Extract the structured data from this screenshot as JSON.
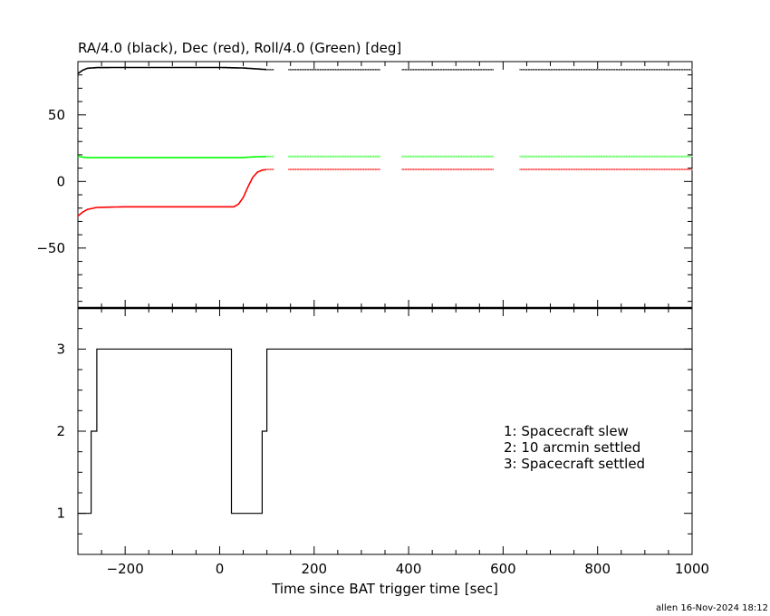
{
  "chart_data": [
    {
      "type": "line",
      "panel": "top",
      "title": "RA/4.0 (black), Dec (red), Roll/4.0 (Green) [deg]",
      "xlim": [
        -300,
        1000
      ],
      "ylim": [
        -95,
        90
      ],
      "yticks": [
        -50,
        0,
        50
      ],
      "grid": false,
      "gaps": [
        [
          115,
          145
        ],
        [
          340,
          385
        ],
        [
          580,
          635
        ]
      ],
      "series": [
        {
          "color": "#000000",
          "points": [
            [
              -300,
              81
            ],
            [
              -290,
              83.5
            ],
            [
              -280,
              85
            ],
            [
              -260,
              85.5
            ],
            [
              -200,
              85.6
            ],
            [
              0,
              85.6
            ],
            [
              50,
              85.2
            ],
            [
              80,
              84.5
            ],
            [
              100,
              84
            ],
            [
              150,
              84
            ],
            [
              1000,
              84
            ]
          ]
        },
        {
          "color": "#ff0000",
          "points": [
            [
              -300,
              -26
            ],
            [
              -290,
              -23
            ],
            [
              -280,
              -21
            ],
            [
              -260,
              -19.5
            ],
            [
              -200,
              -19
            ],
            [
              30,
              -19
            ],
            [
              40,
              -17
            ],
            [
              50,
              -12
            ],
            [
              60,
              -4
            ],
            [
              70,
              3
            ],
            [
              80,
              7
            ],
            [
              90,
              8.5
            ],
            [
              100,
              9
            ],
            [
              1000,
              9
            ]
          ]
        },
        {
          "color": "#00ff00",
          "points": [
            [
              -300,
              19
            ],
            [
              -290,
              18.2
            ],
            [
              -280,
              18
            ],
            [
              -200,
              18
            ],
            [
              50,
              18
            ],
            [
              75,
              18.5
            ],
            [
              100,
              18.8
            ],
            [
              1000,
              18.8
            ]
          ]
        }
      ]
    },
    {
      "type": "line",
      "panel": "bottom",
      "xlabel": "Time since BAT trigger time [sec]",
      "xlim": [
        -300,
        1000
      ],
      "ylim": [
        0.5,
        3.5
      ],
      "xticks": [
        -200,
        0,
        200,
        400,
        600,
        800,
        1000
      ],
      "yticks": [
        1,
        2,
        3
      ],
      "grid": false,
      "series": [
        {
          "color": "#000000",
          "step": true,
          "points": [
            [
              -300,
              1
            ],
            [
              -272,
              2
            ],
            [
              -260,
              3
            ],
            [
              25,
              1
            ],
            [
              90,
              2
            ],
            [
              100,
              3
            ],
            [
              1000,
              3
            ]
          ]
        }
      ],
      "legend": [
        "1: Spacecraft slew",
        "2: 10 arcmin settled",
        "3: Spacecraft settled"
      ]
    }
  ],
  "footer": "allen 16-Nov-2024 18:12"
}
